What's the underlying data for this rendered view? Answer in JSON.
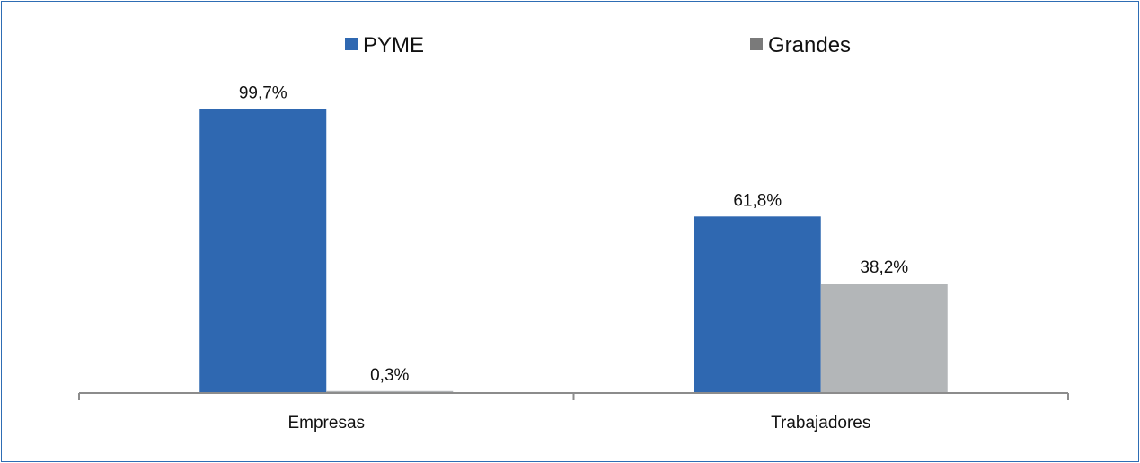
{
  "chart_data": {
    "type": "bar",
    "categories": [
      "Empresas",
      "Trabajadores"
    ],
    "series": [
      {
        "name": "PYME",
        "values": [
          99.7,
          61.8
        ],
        "labels": [
          "99,7%",
          "61,8%"
        ],
        "color": "#2f68b1"
      },
      {
        "name": "Grandes",
        "values": [
          0.3,
          38.2
        ],
        "labels": [
          "0,3%",
          "38,2%"
        ],
        "color": "#b3b6b8"
      }
    ],
    "ylim": [
      0,
      100
    ],
    "grid": false,
    "legend_position": "top",
    "legend_marker_colors": [
      "#2f68b1",
      "#7a7a7a"
    ],
    "title": "",
    "xlabel": "",
    "ylabel": ""
  }
}
